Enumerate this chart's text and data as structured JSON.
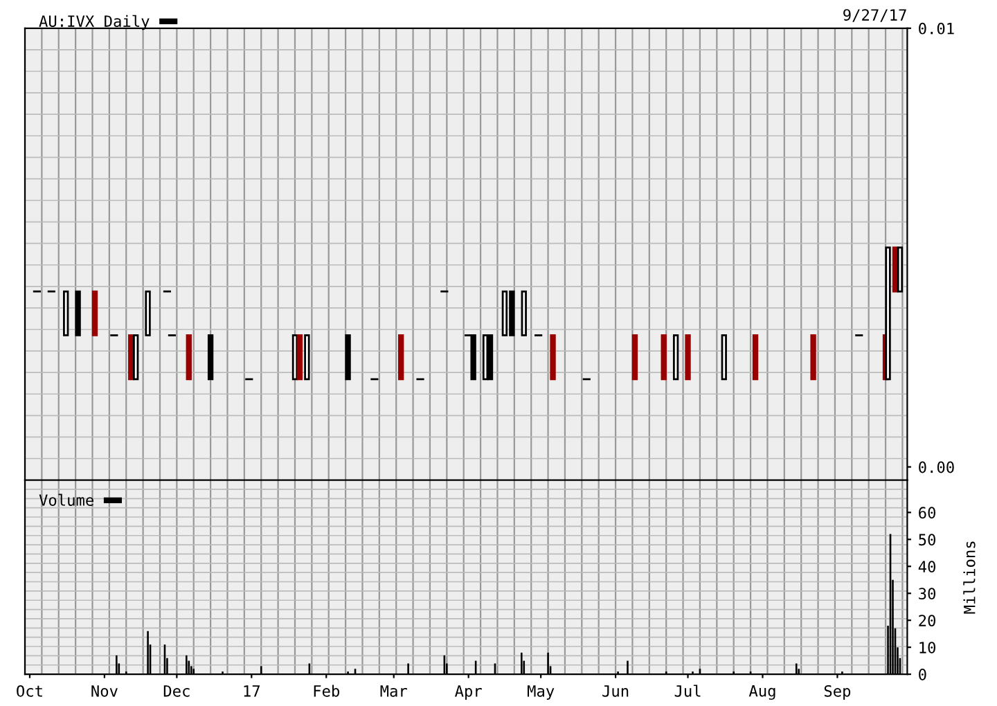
{
  "chart_data": [
    {
      "type": "candlestick",
      "annotations": [
        "9/27/17"
      ],
      "x": [
        "2016-10-04",
        "2016-10-10",
        "2016-10-16",
        "2016-10-21",
        "2016-10-28",
        "2016-11-05",
        "2016-11-12",
        "2016-11-14",
        "2016-11-19",
        "2016-11-27",
        "2016-11-29",
        "2016-12-06",
        "2016-12-15",
        "2016-12-31",
        "2017-01-19",
        "2017-01-21",
        "2017-01-24",
        "2017-02-10",
        "2017-02-21",
        "2017-03-04",
        "2017-03-12",
        "2017-03-22",
        "2017-04-01",
        "2017-04-03",
        "2017-04-08",
        "2017-04-10",
        "2017-04-16",
        "2017-04-19",
        "2017-04-24",
        "2017-04-30",
        "2017-05-06",
        "2017-05-20",
        "2017-06-09",
        "2017-06-21",
        "2017-06-26",
        "2017-07-01",
        "2017-07-16",
        "2017-07-29",
        "2017-08-22",
        "2017-09-10",
        "2017-09-21",
        "2017-09-22",
        "2017-09-25",
        "2017-09-27"
      ],
      "series": [
        {
          "name": "AU:IVX Daily",
          "color": "#000000",
          "ohlc": [
            [
              0.004,
              0.004,
              0.004,
              0.004
            ],
            [
              0.004,
              0.004,
              0.004,
              0.004
            ],
            [
              0.003,
              0.004,
              0.003,
              0.004
            ],
            [
              0.004,
              0.004,
              0.003,
              0.003
            ],
            [
              0.004,
              0.004,
              0.003,
              0.003
            ],
            [
              0.003,
              0.003,
              0.003,
              0.003
            ],
            [
              0.003,
              0.003,
              0.002,
              0.002
            ],
            [
              0.002,
              0.003,
              0.002,
              0.003
            ],
            [
              0.003,
              0.004,
              0.003,
              0.004
            ],
            [
              0.004,
              0.004,
              0.004,
              0.004
            ],
            [
              0.003,
              0.003,
              0.003,
              0.003
            ],
            [
              0.003,
              0.003,
              0.002,
              0.002
            ],
            [
              0.003,
              0.003,
              0.002,
              0.002
            ],
            [
              0.002,
              0.002,
              0.002,
              0.002
            ],
            [
              0.002,
              0.003,
              0.002,
              0.003
            ],
            [
              0.003,
              0.003,
              0.002,
              0.002
            ],
            [
              0.002,
              0.003,
              0.002,
              0.003
            ],
            [
              0.003,
              0.003,
              0.002,
              0.002
            ],
            [
              0.002,
              0.002,
              0.002,
              0.002
            ],
            [
              0.003,
              0.003,
              0.002,
              0.002
            ],
            [
              0.002,
              0.002,
              0.002,
              0.002
            ],
            [
              0.004,
              0.004,
              0.004,
              0.004
            ],
            [
              0.003,
              0.003,
              0.003,
              0.003
            ],
            [
              0.003,
              0.003,
              0.002,
              0.002
            ],
            [
              0.002,
              0.003,
              0.002,
              0.003
            ],
            [
              0.003,
              0.003,
              0.002,
              0.002
            ],
            [
              0.003,
              0.004,
              0.003,
              0.004
            ],
            [
              0.004,
              0.004,
              0.003,
              0.003
            ],
            [
              0.003,
              0.004,
              0.003,
              0.004
            ],
            [
              0.003,
              0.003,
              0.003,
              0.003
            ],
            [
              0.003,
              0.003,
              0.002,
              0.002
            ],
            [
              0.002,
              0.002,
              0.002,
              0.002
            ],
            [
              0.003,
              0.003,
              0.002,
              0.002
            ],
            [
              0.003,
              0.003,
              0.002,
              0.002
            ],
            [
              0.002,
              0.003,
              0.002,
              0.003
            ],
            [
              0.003,
              0.003,
              0.002,
              0.002
            ],
            [
              0.002,
              0.003,
              0.002,
              0.003
            ],
            [
              0.003,
              0.003,
              0.002,
              0.002
            ],
            [
              0.003,
              0.003,
              0.002,
              0.002
            ],
            [
              0.003,
              0.003,
              0.003,
              0.003
            ],
            [
              0.003,
              0.003,
              0.002,
              0.002
            ],
            [
              0.002,
              0.005,
              0.002,
              0.005
            ],
            [
              0.005,
              0.005,
              0.004,
              0.004
            ],
            [
              0.004,
              0.005,
              0.004,
              0.005
            ]
          ],
          "colors": [
            "#000000",
            "#000000",
            "#000000",
            "#000000",
            "#990000",
            "#000000",
            "#990000",
            "#000000",
            "#000000",
            "#000000",
            "#000000",
            "#990000",
            "#000000",
            "#000000",
            "#000000",
            "#990000",
            "#000000",
            "#000000",
            "#000000",
            "#990000",
            "#000000",
            "#000000",
            "#000000",
            "#000000",
            "#000000",
            "#000000",
            "#000000",
            "#000000",
            "#000000",
            "#000000",
            "#990000",
            "#000000",
            "#990000",
            "#990000",
            "#000000",
            "#990000",
            "#000000",
            "#990000",
            "#990000",
            "#000000",
            "#990000",
            "#000000",
            "#990000",
            "#000000"
          ]
        }
      ],
      "xlim": [
        "2016-09-29",
        "2017-09-30"
      ],
      "ylim": [
        -0.0003,
        0.01
      ],
      "yticks": [
        {
          "value": 0,
          "label": "0.00"
        },
        {
          "value": 0.01,
          "label": "0.01"
        }
      ],
      "tick_labels": "y",
      "grid": true,
      "legend": "top left"
    },
    {
      "type": "bar",
      "ylabel": "Millions",
      "x": [
        "2016-11-06",
        "2016-11-07",
        "2016-11-10",
        "2016-11-19",
        "2016-11-20",
        "2016-11-26",
        "2016-11-27",
        "2016-12-05",
        "2016-12-06",
        "2016-12-07",
        "2016-12-08",
        "2016-12-20",
        "2017-01-05",
        "2017-01-25",
        "2017-02-10",
        "2017-02-13",
        "2017-03-07",
        "2017-03-22",
        "2017-03-23",
        "2017-04-04",
        "2017-04-12",
        "2017-04-23",
        "2017-04-24",
        "2017-05-04",
        "2017-05-05",
        "2017-06-02",
        "2017-06-06",
        "2017-06-22",
        "2017-07-03",
        "2017-07-06",
        "2017-07-20",
        "2017-07-27",
        "2017-08-15",
        "2017-08-16",
        "2017-09-03",
        "2017-09-22",
        "2017-09-23",
        "2017-09-24",
        "2017-09-25",
        "2017-09-26",
        "2017-09-27"
      ],
      "series": [
        {
          "name": "Volume",
          "color": "#000000",
          "values": [
            7,
            4,
            1,
            16,
            11,
            11,
            6,
            7,
            5,
            3,
            2,
            1,
            3,
            4,
            1,
            2,
            4,
            7,
            4,
            5,
            4,
            8,
            5,
            8,
            3,
            1,
            5,
            1,
            1,
            2,
            1,
            1,
            4,
            2,
            1,
            18,
            52,
            35,
            17,
            10,
            6
          ]
        }
      ],
      "xlim": [
        "2016-09-29",
        "2017-09-30"
      ],
      "ylim": [
        0,
        72
      ],
      "xticks": [
        {
          "value": "2016-10-01",
          "label": "Oct"
        },
        {
          "value": "2016-11-01",
          "label": "Nov"
        },
        {
          "value": "2016-12-01",
          "label": "Dec"
        },
        {
          "value": "2017-01-01",
          "label": "17"
        },
        {
          "value": "2017-02-01",
          "label": "Feb"
        },
        {
          "value": "2017-03-01",
          "label": "Mar"
        },
        {
          "value": "2017-04-01",
          "label": "Apr"
        },
        {
          "value": "2017-05-01",
          "label": "May"
        },
        {
          "value": "2017-06-01",
          "label": "Jun"
        },
        {
          "value": "2017-07-01",
          "label": "Jul"
        },
        {
          "value": "2017-08-01",
          "label": "Aug"
        },
        {
          "value": "2017-09-01",
          "label": "Sep"
        }
      ],
      "yticks": [
        0,
        10,
        20,
        30,
        40,
        50,
        60
      ],
      "grid": true,
      "legend": "top left"
    }
  ]
}
